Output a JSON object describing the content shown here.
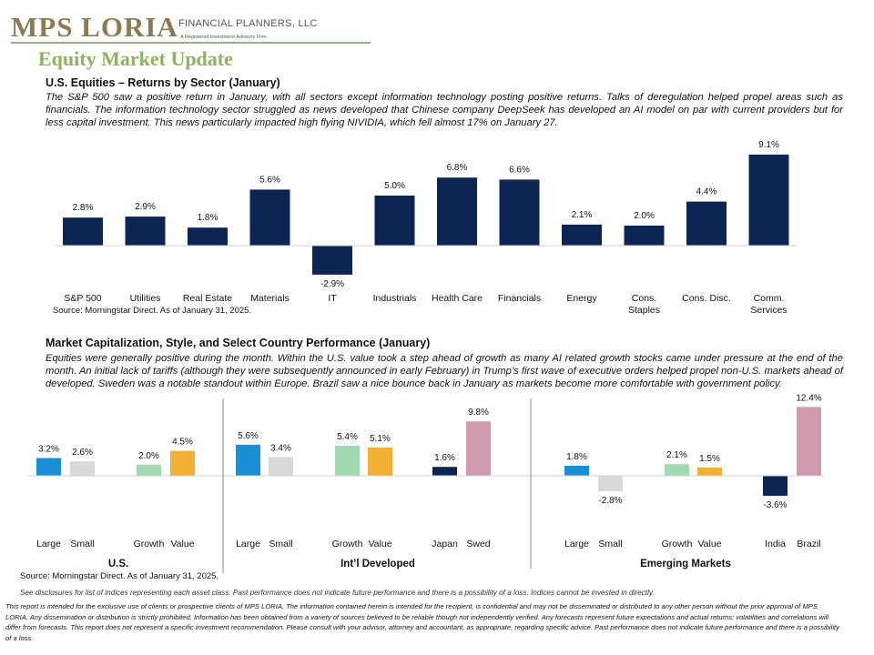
{
  "header": {
    "logo_text": "MPS LORIA",
    "firm_text": "FINANCIAL PLANNERS, LLC",
    "firm_subtext": "A Registered Investment Advisory Firm",
    "title": "Equity Market Update"
  },
  "section1": {
    "heading": "U.S. Equities – Returns by Sector (January)",
    "body": "The S&P 500 saw a positive return in January, with all sectors except information technology posting positive returns. Talks of deregulation helped propel areas such as financials. The information technology sector struggled as news developed that Chinese company DeepSeek has developed an AI model on par with current providers but for less capital investment. This news particularly impacted high flying NIVIDIA, which fell almost 17% on January 27.",
    "source": "Source: Morningstar Direct. As of January 31, 2025."
  },
  "section2": {
    "heading": "Market Capitalization, Style, and Select Country Performance (January)",
    "body": "Equities were generally positive during the month. Within the U.S. value took a step ahead of growth as many AI related growth stocks came under pressure at the end of the month. An initial lack of tariffs (although they were subsequently announced in early February) in Trump’s first wave of executive orders helped propel non-U.S. markets ahead of developed. Sweden was a notable standout within Europe. Brazil saw a nice bounce back in January as markets become more comfortable with government policy.",
    "source": "Source: Morningstar Direct. As of January 31, 2025."
  },
  "disclosure": "See disclosures for list of indices representing each asset class. Past performance does not indicate future performance and there is a possibility of a loss. Indices cannot be invested in directly.",
  "footer": "This report is intended for the exclusive use of clients or prospective clients of MPS LORIA. The information contained herein is intended for the recipient, is confidential and may not be disseminated or distributed to any other person without the prior approval of MPS LORIA. Any dissemination or distribution is strictly prohibited. Information has been obtained from a variety of sources believed to be reliable though not independently verified. Any forecasts represent future expectations and actual returns; volatilities and correlations will differ from forecasts. This report does not represent a specific investment recommendation. Please consult with your advisor, attorney and accountant, as appropriate, regarding specific advice. Past performance does not indicate future performance and there is a possibility of a loss.",
  "chart_data": [
    {
      "type": "bar",
      "title": "U.S. Equities – Returns by Sector (January)",
      "categories": [
        "S&P 500",
        "Utilities",
        "Real Estate",
        "Materials",
        "IT",
        "Industrials",
        "Health Care",
        "Financials",
        "Energy",
        "Cons. Staples",
        "Cons. Disc.",
        "Comm. Services"
      ],
      "values": [
        2.8,
        2.9,
        1.8,
        5.6,
        -2.9,
        5.0,
        6.8,
        6.6,
        2.1,
        2.0,
        4.4,
        9.1
      ],
      "value_labels": [
        "2.8%",
        "2.9%",
        "1.8%",
        "5.6%",
        "-2.9%",
        "5.0%",
        "6.8%",
        "6.6%",
        "2.1%",
        "2.0%",
        "4.4%",
        "9.1%"
      ],
      "color": "#0d2552",
      "grid": false,
      "legend": "none"
    },
    {
      "type": "bar",
      "title": "Market Capitalization, Style, and Select Country Performance (January)",
      "groups": [
        {
          "name": "U.S.",
          "bars": [
            {
              "label": "Large",
              "value": 3.2,
              "value_label": "3.2%",
              "color": "#1a8fd6"
            },
            {
              "label": "Small",
              "value": 2.6,
              "value_label": "2.6%",
              "color": "#d9d9d9"
            },
            {
              "label": "Growth",
              "value": 2.0,
              "value_label": "2.0%",
              "color": "#a3d9b1"
            },
            {
              "label": "Value",
              "value": 4.5,
              "value_label": "4.5%",
              "color": "#f2b134"
            }
          ]
        },
        {
          "name": "Int’l Developed",
          "bars": [
            {
              "label": "Large",
              "value": 5.6,
              "value_label": "5.6%",
              "color": "#1a8fd6"
            },
            {
              "label": "Small",
              "value": 3.4,
              "value_label": "3.4%",
              "color": "#d9d9d9"
            },
            {
              "label": "Growth",
              "value": 5.4,
              "value_label": "5.4%",
              "color": "#a3d9b1"
            },
            {
              "label": "Value",
              "value": 5.1,
              "value_label": "5.1%",
              "color": "#f2b134"
            },
            {
              "label": "Japan",
              "value": 1.6,
              "value_label": "1.6%",
              "color": "#0d2552"
            },
            {
              "label": "Swed",
              "value": 9.8,
              "value_label": "9.8%",
              "color": "#cf9aae"
            }
          ]
        },
        {
          "name": "Emerging Markets",
          "bars": [
            {
              "label": "Large",
              "value": 1.8,
              "value_label": "1.8%",
              "color": "#1a8fd6"
            },
            {
              "label": "Small",
              "value": -2.8,
              "value_label": "-2.8%",
              "color": "#d9d9d9"
            },
            {
              "label": "Growth",
              "value": 2.1,
              "value_label": "2.1%",
              "color": "#a3d9b1"
            },
            {
              "label": "Value",
              "value": 1.5,
              "value_label": "1.5%",
              "color": "#f2b134"
            },
            {
              "label": "India",
              "value": -3.6,
              "value_label": "-3.6%",
              "color": "#0d2552"
            },
            {
              "label": "Brazil",
              "value": 12.4,
              "value_label": "12.4%",
              "color": "#cf9aae"
            }
          ]
        }
      ],
      "grid": false,
      "legend": "none"
    }
  ]
}
